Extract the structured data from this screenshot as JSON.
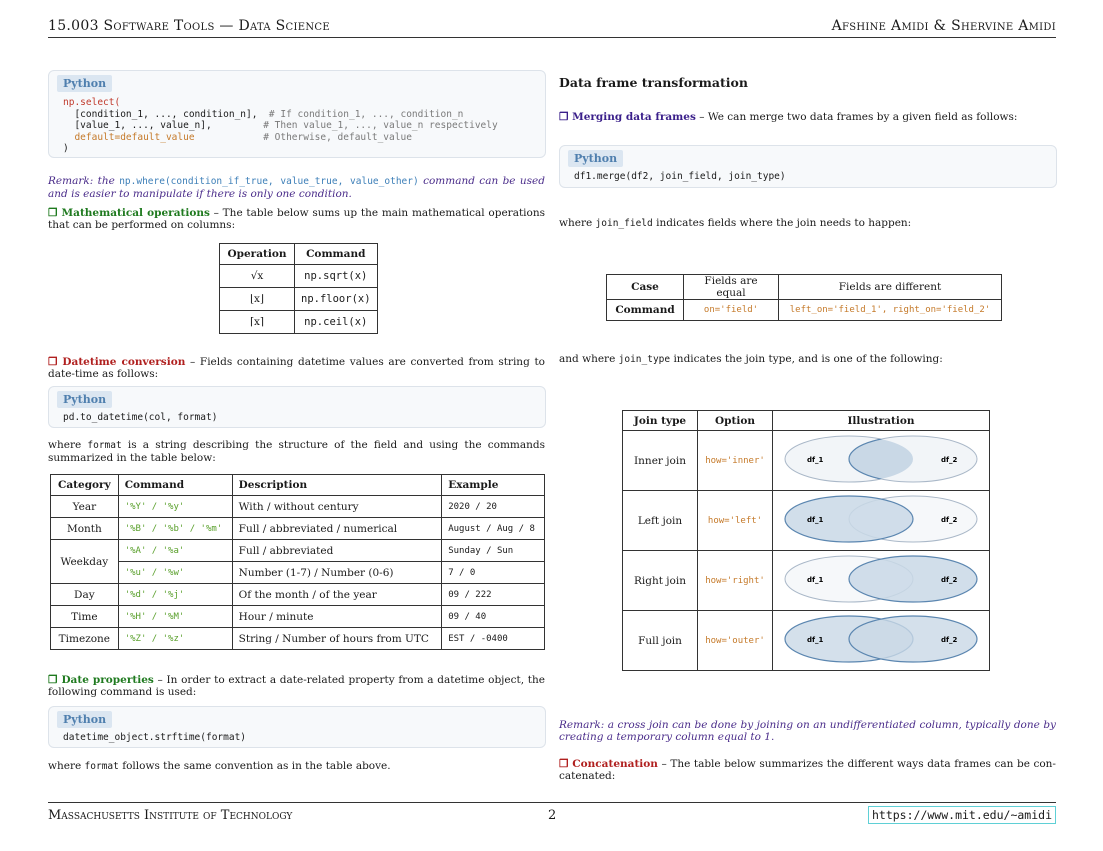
{
  "header": {
    "left": "15.003 Software Tools — Data Science",
    "right": "Afshine Amidi & Shervine Amidi"
  },
  "footer": {
    "left": "Massachusetts Institute of Technology",
    "page": "2",
    "url": "https://www.mit.edu/~amidi"
  },
  "code_tag": "Python",
  "select_code": {
    "l1": "np.select(",
    "l2": "  [condition_1, ..., condition_n],",
    "l2c": "# If condition_1, ..., condition_n",
    "l3": "  [value_1, ..., value_n],",
    "l3c": "# Then value_1, ..., value_n respectively",
    "l4": "  default=default_value",
    "l4c": "# Otherwise, default_value",
    "l5": ")"
  },
  "remark1": {
    "pre": "Remark: the ",
    "code": "np.where(condition_if_true, value_true, value_other)",
    "post": " command can be used and is easier to manipulate if there is only one condition."
  },
  "math_ops": {
    "title": "Mathematical operations",
    "text": " – The table below sums up the main mathematical operations that can be performed on columns:"
  },
  "math_table": {
    "headers": [
      "Operation",
      "Command"
    ],
    "rows": [
      {
        "op": "√x",
        "cmd": "np.sqrt(x)"
      },
      {
        "op": "⌊x⌋",
        "cmd": "np.floor(x)"
      },
      {
        "op": "⌈x⌉",
        "cmd": "np.ceil(x)"
      }
    ]
  },
  "datetime": {
    "title": "Datetime conversion",
    "text": " – Fields containing datetime values are converted from string to date-time as follows:"
  },
  "datetime_code": "pd.to_datetime(col, format)",
  "format_text": {
    "pre": "where ",
    "code": "format",
    "post": " is a string describing the structure of the field and using the commands summarized in the table below:"
  },
  "format_table": {
    "headers": [
      "Category",
      "Command",
      "Description",
      "Example"
    ],
    "rows": [
      {
        "cat": "Year",
        "cmd": "'%Y' / '%y'",
        "desc": "With / without century",
        "ex": "2020 / 20"
      },
      {
        "cat": "Month",
        "cmd": "'%B' / '%b' / '%m'",
        "desc": "Full / abbreviated / numerical",
        "ex": "August / Aug / 8"
      },
      {
        "cat": "Weekday",
        "cmd": "'%A' / '%a'",
        "desc": "Full / abbreviated",
        "ex": "Sunday / Sun"
      },
      {
        "cat": "",
        "cmd": "'%u' / '%w'",
        "desc": "Number (1-7) / Number (0-6)",
        "ex": "7 / 0"
      },
      {
        "cat": "Day",
        "cmd": "'%d' / '%j'",
        "desc": "Of the month / of the year",
        "ex": "09 / 222"
      },
      {
        "cat": "Time",
        "cmd": "'%H' / '%M'",
        "desc": "Hour / minute",
        "ex": "09 / 40"
      },
      {
        "cat": "Timezone",
        "cmd": "'%Z' / '%z'",
        "desc": "String / Number of hours from UTC",
        "ex": "EST / -0400"
      }
    ]
  },
  "date_props": {
    "title": "Date properties",
    "text": " – In order to extract a date-related property from a datetime object, the following command is used:"
  },
  "date_code": "datetime_object.strftime(format)",
  "date_after": {
    "pre": "where ",
    "code": "format",
    "post": " follows the same convention as in the table above."
  },
  "transform": {
    "title": "Data frame transformation"
  },
  "merging": {
    "title": "Merging data frames",
    "text": " – We can merge two data frames by a given field as follows:"
  },
  "merge_code": "df1.merge(df2, join_field, join_type)",
  "join_field_text": {
    "pre": "where ",
    "code": "join_field",
    "post": " indicates fields where the join needs to happen:"
  },
  "case_table": {
    "headers": [
      "Case",
      "Fields are equal",
      "Fields are different"
    ],
    "row_label": "Command",
    "equal": "on='field'",
    "different": "left_on='field_1', right_on='field_2'"
  },
  "join_type_text": {
    "pre": "and where ",
    "code": "join_type",
    "post": " indicates the join type, and is one of the following:"
  },
  "join_table": {
    "headers": [
      "Join type",
      "Option",
      "Illustration"
    ],
    "rows": [
      {
        "type": "Inner join",
        "opt": "how='inner'",
        "l": "df_1",
        "r": "df_2"
      },
      {
        "type": "Left join",
        "opt": "how='left'",
        "l": "df_1",
        "r": "df_2"
      },
      {
        "type": "Right join",
        "opt": "how='right'",
        "l": "df_1",
        "r": "df_2"
      },
      {
        "type": "Full join",
        "opt": "how='outer'",
        "l": "df_1",
        "r": "df_2"
      }
    ]
  },
  "remark2": "Remark: a cross join can be done by joining on an undifferentiated column, typically done by creating a temporary column equal to 1.",
  "concat": {
    "title": "Concatenation",
    "text": " – The table below summarizes the different ways data frames can be con-catenated:"
  }
}
